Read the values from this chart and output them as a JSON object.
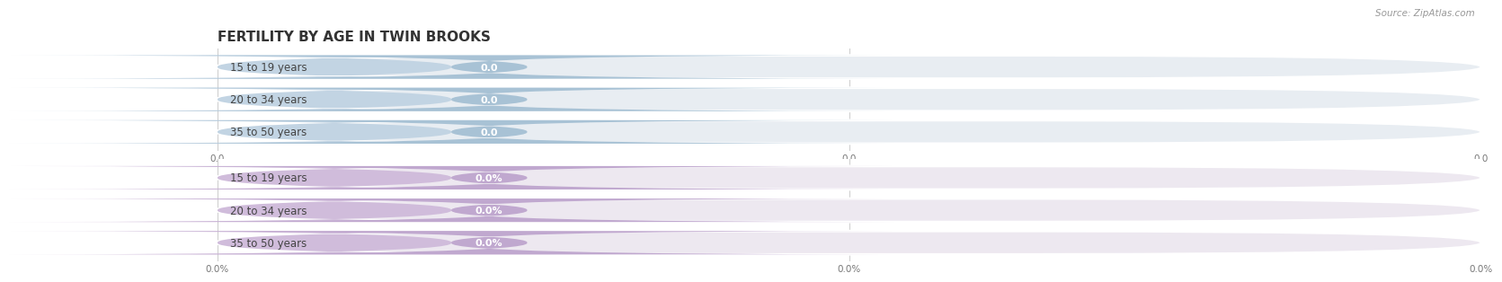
{
  "title": "FERTILITY BY AGE IN TWIN BROOKS",
  "source": "Source: ZipAtlas.com",
  "categories": [
    "15 to 19 years",
    "20 to 34 years",
    "35 to 50 years"
  ],
  "values_count": [
    0.0,
    0.0,
    0.0
  ],
  "values_pct": [
    0.0,
    0.0,
    0.0
  ],
  "xtick_labels_count": [
    "0.0",
    "0.0",
    "0.0"
  ],
  "xtick_labels_pct": [
    "0.0%",
    "0.0%",
    "0.0%"
  ],
  "bar_bg_color_count": "#e8edf2",
  "label_bg_color_count": "#c2d4e3",
  "val_pill_color_count": "#a8c2d5",
  "bar_bg_color_pct": "#ede8f0",
  "label_bg_color_pct": "#d0bcdb",
  "val_pill_color_pct": "#c0a8cf",
  "bar_text_color": "#ffffff",
  "label_text_color": "#444444",
  "title_color": "#333333",
  "source_color": "#999999",
  "bg_color": "#ffffff",
  "title_fontsize": 11,
  "label_fontsize": 8.5,
  "val_fontsize": 8,
  "tick_fontsize": 7.5,
  "source_fontsize": 7.5
}
